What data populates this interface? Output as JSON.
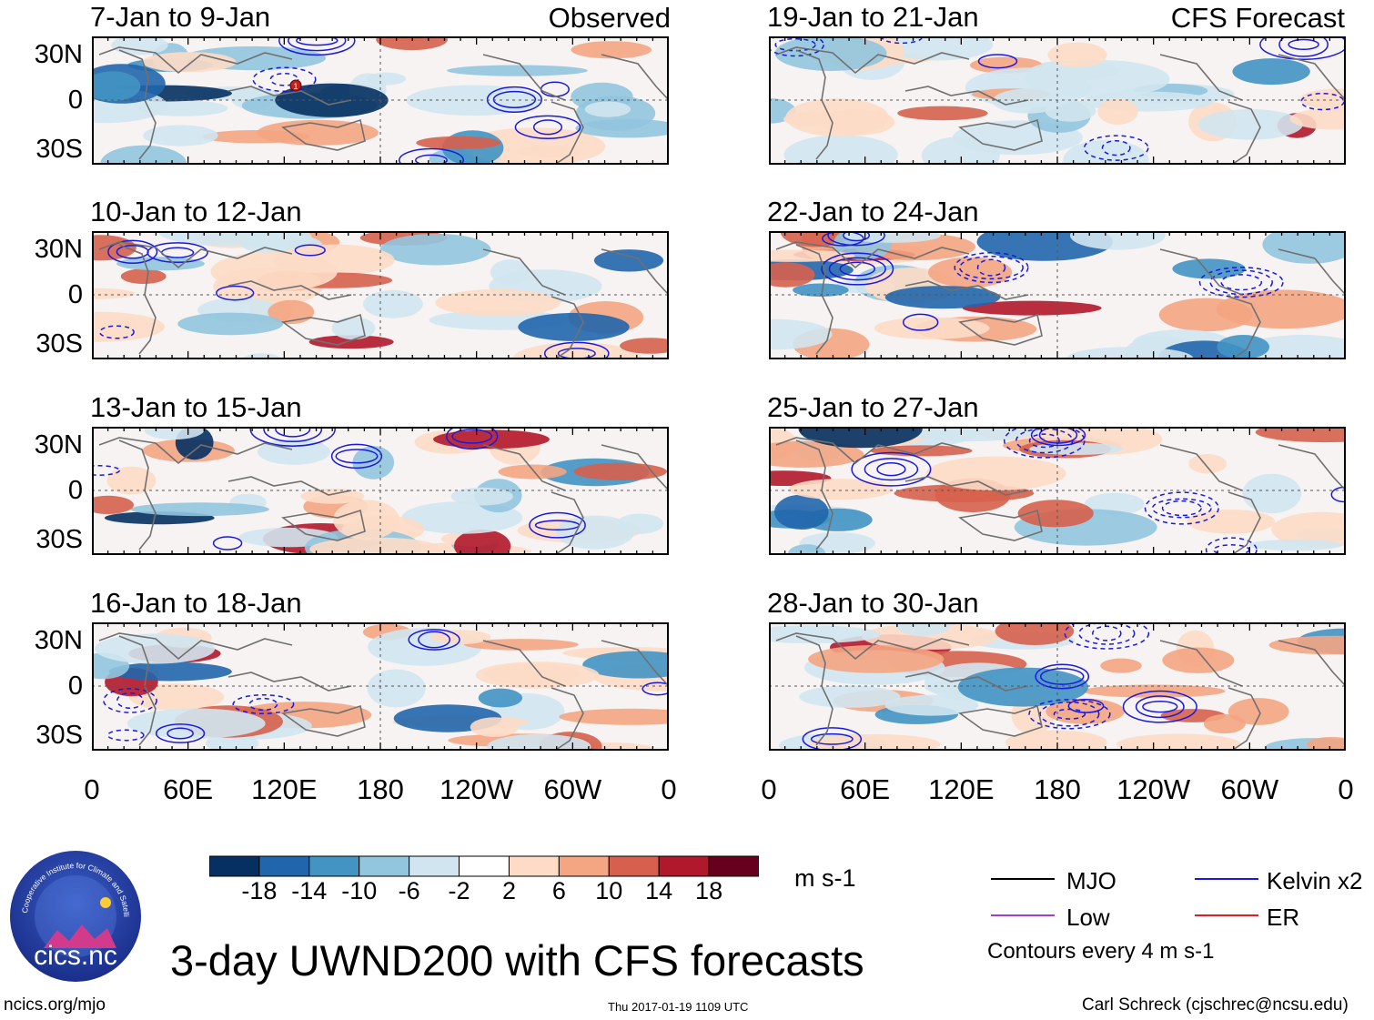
{
  "left_header": "Observed",
  "right_header": "CFS Forecast",
  "lat_labels": [
    "30N",
    "0",
    "30S"
  ],
  "lon_labels": [
    "0",
    "60E",
    "120E",
    "180",
    "120W",
    "60W",
    "0"
  ],
  "observed_panels": [
    {
      "title": "7-Jan to 9-Jan"
    },
    {
      "title": "10-Jan to 12-Jan"
    },
    {
      "title": "13-Jan to 15-Jan"
    },
    {
      "title": "16-Jan to 18-Jan"
    }
  ],
  "forecast_panels": [
    {
      "title": "19-Jan to 21-Jan"
    },
    {
      "title": "22-Jan to 24-Jan"
    },
    {
      "title": "25-Jan to 27-Jan"
    },
    {
      "title": "28-Jan to 30-Jan"
    }
  ],
  "colorbar": {
    "tick_labels": [
      "-18",
      "-14",
      "-10",
      "-6",
      "-2",
      "2",
      "6",
      "10",
      "14",
      "18"
    ],
    "colors": [
      "#053061",
      "#2166ac",
      "#4393c3",
      "#92c5de",
      "#d1e5f0",
      "#ffffff",
      "#fddbc7",
      "#f4a582",
      "#d6604d",
      "#b2182b",
      "#67001f"
    ],
    "units": "m s-1"
  },
  "legend": {
    "items": [
      {
        "label": "MJO",
        "color": "#000000"
      },
      {
        "label": "Kelvin x2",
        "color": "#1a1adc"
      },
      {
        "label": "Low",
        "color": "#a040d0"
      },
      {
        "label": "ER",
        "color": "#e02020"
      }
    ],
    "note": "Contours every 4 m s-1"
  },
  "logo": {
    "text": "cics.nc",
    "ring_text": "Cooperative Institute for Climate and Satellites"
  },
  "main_title": "3-day UWND200 with CFS forecasts",
  "footer": {
    "left": "ncics.org/mjo",
    "center": "Thu 2017-01-19 1109 UTC",
    "right": "Carl Schreck (cjschrec@ncsu.edu)"
  },
  "storm_marker": "1"
}
